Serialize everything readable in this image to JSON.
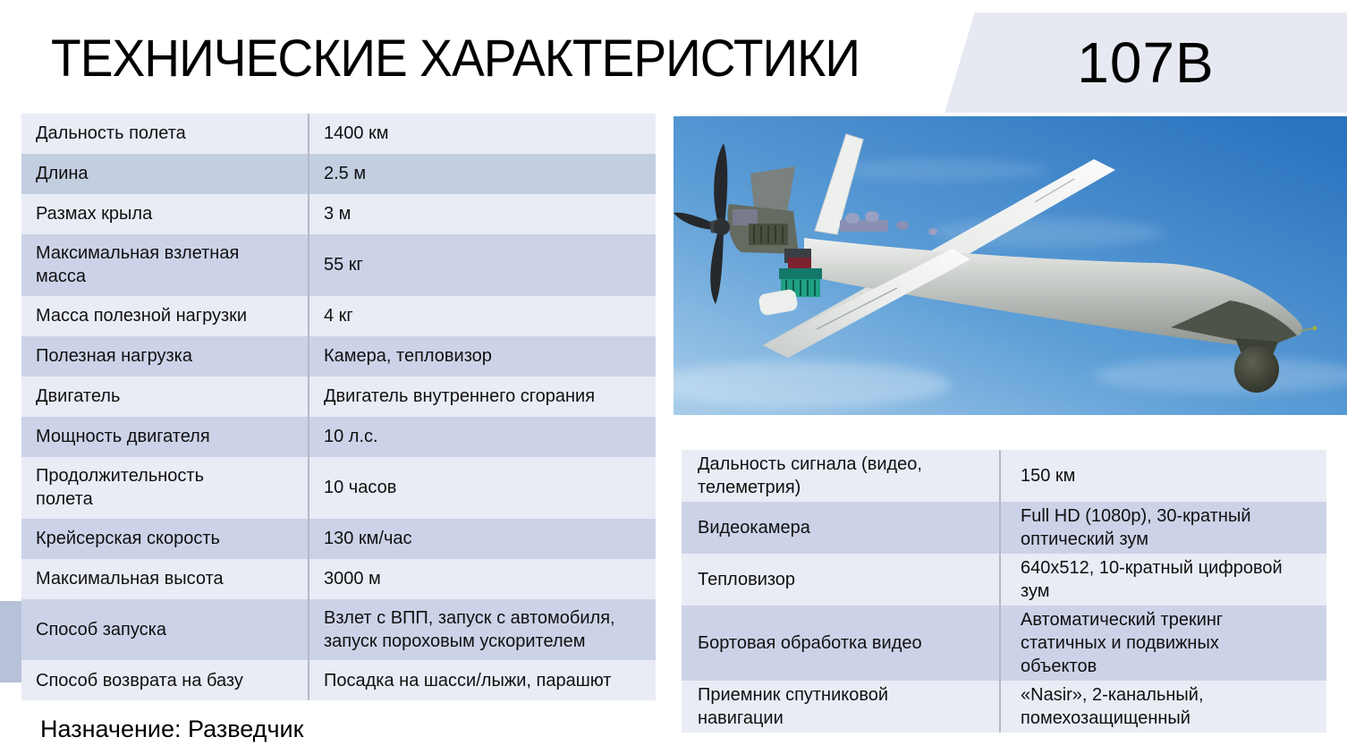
{
  "page": {
    "title": "ТЕХНИЧЕСКИЕ ХАРАКТЕРИСТИКИ",
    "model_badge": "107В",
    "purpose": "Назначение: Разведчик"
  },
  "colors": {
    "band_light": "#e9ecf5",
    "band_dark": "#ccd3e8",
    "band_blue": "#c3cee1",
    "decor_gray": "#b7c1d7",
    "badge_bg": "#e7e9f2",
    "divider": "#b2b9c7",
    "sky_deep": "#2a73bf",
    "sky_mid": "#5e9fd7",
    "sky_light": "#a8cdea"
  },
  "left_table": {
    "rows": [
      {
        "label": "Дальность полета",
        "value": "1400 км"
      },
      {
        "label": "Длина",
        "value": "2.5 м",
        "shade": "blue"
      },
      {
        "label": "Размах крыла",
        "value": "3 м"
      },
      {
        "label": "Максимальная взлетная масса",
        "value": "55 кг"
      },
      {
        "label": "Масса полезной нагрузки",
        "value": "4 кг"
      },
      {
        "label": "Полезная нагрузка",
        "value": "Камера, тепловизор"
      },
      {
        "label": "Двигатель",
        "value": "Двигатель внутреннего сгорания"
      },
      {
        "label": "Мощность двигателя",
        "value": "10 л.с."
      },
      {
        "label": "Продолжительность полета",
        "value": "10 часов"
      },
      {
        "label": "Крейсерская скорость",
        "value": "130 км/час"
      },
      {
        "label": "Максимальная высота",
        "value": "3000 м"
      },
      {
        "label": "Способ запуска",
        "value": "Взлет с ВПП, запуск с автомобиля, запуск пороховым ускорителем"
      },
      {
        "label": "Способ возврата на базу",
        "value": "Посадка на шасси/лыжи, парашют"
      }
    ]
  },
  "right_table": {
    "rows": [
      {
        "label": "Дальность сигнала (видео, телеметрия)",
        "value": "150 км"
      },
      {
        "label": "Видеокамера",
        "value": "Full HD (1080p), 30-кратный оптический зум"
      },
      {
        "label": "Тепловизор",
        "value": "640x512, 10-кратный цифровой зум"
      },
      {
        "label": "Бортовая обработка видео",
        "value": "Автоматический трекинг статичных и подвижных объектов"
      },
      {
        "label": "Приемник спутниковой навигации",
        "value": "«Nasir», 2-канальный, помехозащищенный"
      }
    ]
  }
}
